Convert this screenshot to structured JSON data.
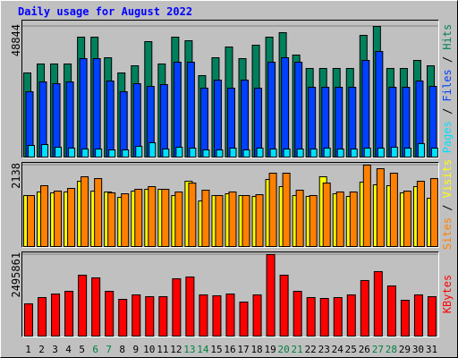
{
  "title": "Daily usage for August 2022",
  "chart_data": [
    {
      "type": "bar",
      "series": [
        {
          "name": "Hits",
          "color": "#00805c",
          "values": [
            31565,
            34890,
            34890,
            34890,
            44857,
            44857,
            37215,
            31565,
            34225,
            43196,
            34890,
            44857,
            43528,
            30569,
            37215,
            41202,
            36883,
            41867,
            44857,
            46518,
            38211,
            33228,
            33228,
            33228,
            33228,
            45522,
            48844,
            33228,
            33228,
            36218,
            34225
          ]
        },
        {
          "name": "Files",
          "color": "#0040ff",
          "values": [
            24589,
            28243,
            27579,
            28243,
            36883,
            36883,
            28575,
            24589,
            27579,
            26582,
            27247,
            35553,
            35553,
            25917,
            28908,
            25917,
            28908,
            25917,
            35553,
            37215,
            35553,
            26250,
            26250,
            26250,
            26250,
            36218,
            39541,
            26250,
            26250,
            28575,
            26582
          ]
        },
        {
          "name": "Pages",
          "color": "#00e0ff",
          "values": [
            4652,
            4984,
            3987,
            3655,
            3323,
            3323,
            2990,
            2990,
            4320,
            5649,
            3323,
            3987,
            3655,
            2990,
            2990,
            3655,
            2990,
            3655,
            3323,
            3323,
            3323,
            3323,
            3655,
            3323,
            3323,
            3655,
            3655,
            3987,
            3655,
            5316,
            3655
          ]
        }
      ],
      "ylim": [
        0,
        51170
      ],
      "yticks": [
        48844
      ]
    },
    {
      "type": "bar",
      "series": [
        {
          "name": "Visits",
          "color": "#ffff00",
          "values": [
            1348,
            1441,
            1418,
            1441,
            1720,
            1464,
            1441,
            1301,
            1464,
            1511,
            1511,
            1348,
            1720,
            1208,
            1348,
            1394,
            1348,
            1325,
            1766,
            1580,
            1348,
            1325,
            1836,
            1394,
            1325,
            1696,
            1627,
            1604,
            1418,
            1580,
            1278
          ]
        },
        {
          "name": "Sites",
          "color": "#ff8000",
          "values": [
            1348,
            1604,
            1464,
            1534,
            1836,
            1789,
            1418,
            1394,
            1511,
            1580,
            1511,
            1441,
            1673,
            1487,
            1348,
            1441,
            1348,
            1371,
            1929,
            1929,
            1487,
            1348,
            1673,
            1441,
            1441,
            2138,
            2045,
            1929,
            1464,
            1720,
            1789
          ]
        }
      ],
      "ylim": [
        0,
        2208
      ],
      "yticks": [
        2138
      ]
    },
    {
      "type": "bar",
      "series": [
        {
          "name": "KBytes",
          "color": "#ff0000",
          "values": [
            1003773,
            1193676,
            1302192,
            1383579,
            1871901,
            1790514,
            1383579,
            1139418,
            1275063,
            1220805,
            1220805,
            1763385,
            1817643,
            1275063,
            1247934,
            1302192,
            1058031,
            1275063,
            2495861,
            1871901,
            1383579,
            1193676,
            1166547,
            1193676,
            1275063,
            1709127,
            1980417,
            1546353,
            1112289,
            1275063,
            1220805
          ]
        }
      ],
      "ylim": [
        0,
        2576000
      ],
      "yticks": [
        2495861
      ],
      "categories": [
        "1",
        "2",
        "3",
        "4",
        "5",
        "6",
        "7",
        "8",
        "9",
        "10",
        "11",
        "12",
        "13",
        "14",
        "15",
        "16",
        "17",
        "18",
        "19",
        "20",
        "21",
        "22",
        "23",
        "24",
        "25",
        "26",
        "27",
        "28",
        "29",
        "30",
        "31"
      ],
      "category_colors": [
        "#000000",
        "#000000",
        "#000000",
        "#000000",
        "#000000",
        "#008040",
        "#008040",
        "#000000",
        "#000000",
        "#000000",
        "#000000",
        "#000000",
        "#008040",
        "#008040",
        "#000000",
        "#000000",
        "#000000",
        "#000000",
        "#000000",
        "#008040",
        "#008040",
        "#000000",
        "#000000",
        "#000000",
        "#000000",
        "#000000",
        "#008040",
        "#008040",
        "#000000",
        "#000000",
        "#000000"
      ]
    }
  ]
}
